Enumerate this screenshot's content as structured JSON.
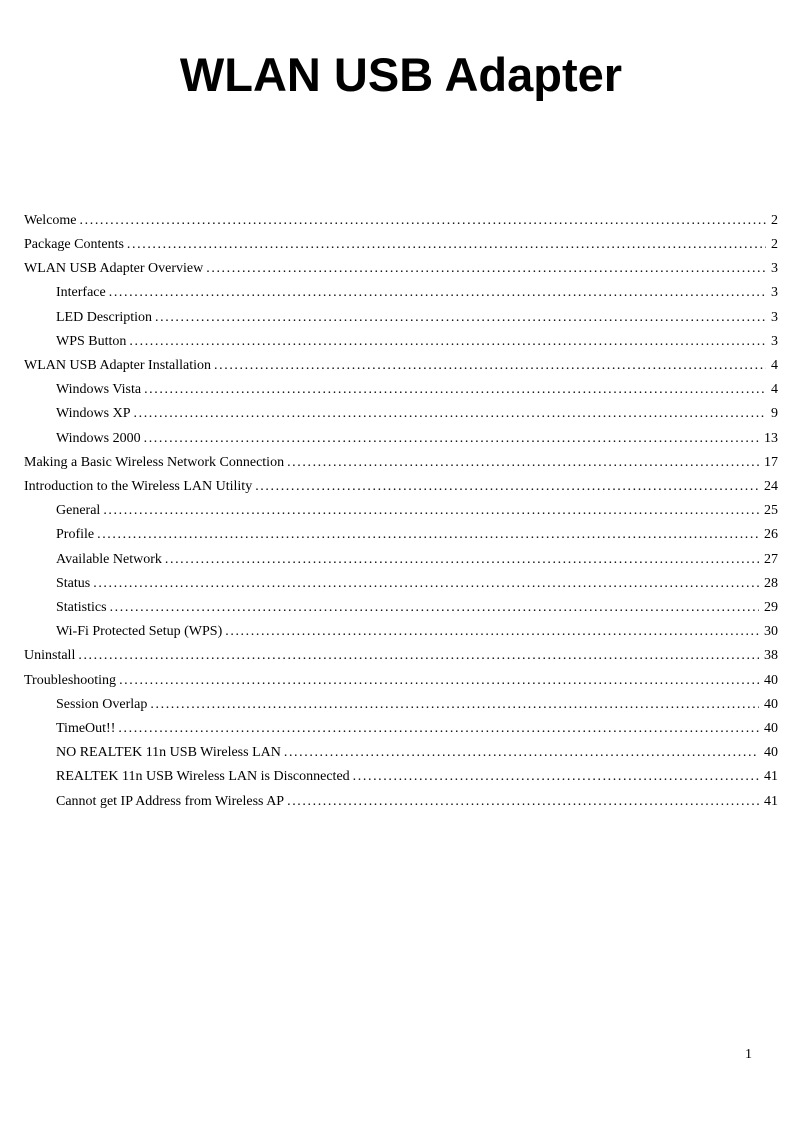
{
  "document": {
    "title": "WLAN USB Adapter",
    "footer_page_number": "1"
  },
  "toc": {
    "leader_char": ".",
    "entries": [
      {
        "label": "Welcome",
        "page": "2",
        "level": 0
      },
      {
        "label": "Package Contents",
        "page": "2",
        "level": 0
      },
      {
        "label": "WLAN USB Adapter Overview",
        "page": "3",
        "level": 0
      },
      {
        "label": "Interface",
        "page": "3",
        "level": 1
      },
      {
        "label": "LED Description",
        "page": "3",
        "level": 1
      },
      {
        "label": "WPS Button",
        "page": "3",
        "level": 1
      },
      {
        "label": "WLAN USB Adapter Installation",
        "page": "4",
        "level": 0
      },
      {
        "label": "Windows Vista",
        "page": "4",
        "level": 1
      },
      {
        "label": "Windows XP",
        "page": "9",
        "level": 1
      },
      {
        "label": "Windows 2000",
        "page": "13",
        "level": 1
      },
      {
        "label": "Making a Basic Wireless Network Connection",
        "page": "17",
        "level": 0
      },
      {
        "label": "Introduction to the Wireless LAN Utility",
        "page": "24",
        "level": 0
      },
      {
        "label": "General",
        "page": "25",
        "level": 1
      },
      {
        "label": "Profile",
        "page": "26",
        "level": 1
      },
      {
        "label": "Available Network",
        "page": "27",
        "level": 1
      },
      {
        "label": "Status",
        "page": "28",
        "level": 1
      },
      {
        "label": "Statistics",
        "page": "29",
        "level": 1
      },
      {
        "label": "Wi-Fi Protected Setup (WPS)",
        "page": "30",
        "level": 1
      },
      {
        "label": "Uninstall",
        "page": "38",
        "level": 0
      },
      {
        "label": "Troubleshooting",
        "page": "40",
        "level": 0
      },
      {
        "label": "Session Overlap",
        "page": "40",
        "level": 1
      },
      {
        "label": "TimeOut!!",
        "page": "40",
        "level": 1
      },
      {
        "label": "NO REALTEK 11n USB Wireless LAN",
        "page": "40",
        "level": 1
      },
      {
        "label": "REALTEK 11n USB Wireless LAN is Disconnected",
        "page": "41",
        "level": 1
      },
      {
        "label": "Cannot get IP Address from Wireless AP",
        "page": "41",
        "level": 1
      }
    ]
  }
}
